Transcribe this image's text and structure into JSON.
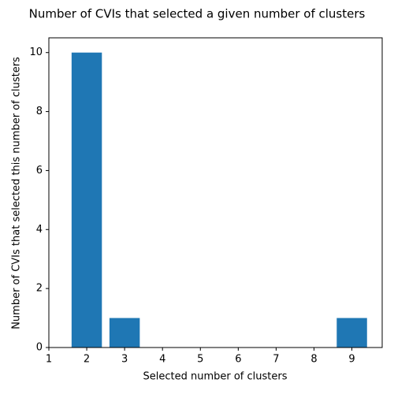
{
  "chart_data": {
    "type": "bar",
    "title": "Number of CVIs that selected a given number of clusters",
    "x_label": "Selected number of clusters",
    "y_label": "Number of CVIs that selected this number of clusters",
    "x": [
      2,
      3,
      9
    ],
    "values": [
      10,
      1,
      1
    ],
    "color": "#1f77b4",
    "xlim": [
      1,
      9.8
    ],
    "xticks": [
      1,
      2,
      3,
      4,
      5,
      6,
      7,
      8,
      9
    ],
    "ylim": [
      0,
      10.5
    ],
    "yticks": [
      0,
      2,
      4,
      6,
      8,
      10
    ],
    "grid": false
  }
}
